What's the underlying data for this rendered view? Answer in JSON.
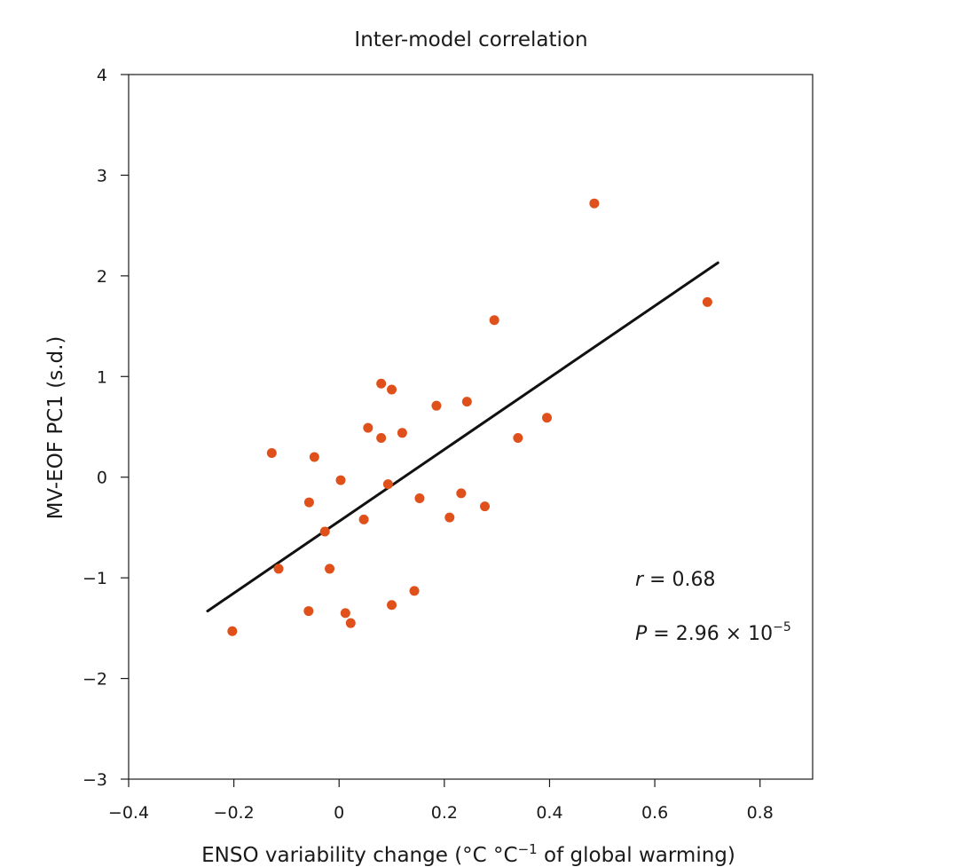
{
  "chart_data": {
    "type": "scatter",
    "title": "Inter-model correlation",
    "xlabel_parts": {
      "before_superscript": "ENSO variability change (°C °C",
      "superscript": "−1",
      "after_superscript": " of global warming)"
    },
    "ylabel": "MV-EOF PC1 (s.d.)",
    "xlim": [
      -0.4,
      0.9
    ],
    "ylim": [
      -3,
      4
    ],
    "x_ticks": [
      -0.4,
      -0.2,
      0,
      0.2,
      0.4,
      0.6,
      0.8
    ],
    "x_tick_labels": [
      "−0.4",
      "−0.2",
      "0",
      "0.2",
      "0.4",
      "0.6",
      "0.8"
    ],
    "y_ticks": [
      4,
      3,
      2,
      1,
      0,
      -1,
      -2,
      -3
    ],
    "y_tick_labels": [
      "4",
      "3",
      "2",
      "1",
      "0",
      "−1",
      "−2",
      "−3"
    ],
    "grid": false,
    "point_color": "#e0501a",
    "line_color": "#111111",
    "points": [
      {
        "x": 0.485,
        "y": 2.72
      },
      {
        "x": 0.7,
        "y": 1.74
      },
      {
        "x": 0.295,
        "y": 1.56
      },
      {
        "x": 0.08,
        "y": 0.93
      },
      {
        "x": 0.1,
        "y": 0.87
      },
      {
        "x": 0.243,
        "y": 0.75
      },
      {
        "x": 0.185,
        "y": 0.71
      },
      {
        "x": 0.395,
        "y": 0.59
      },
      {
        "x": 0.055,
        "y": 0.49
      },
      {
        "x": 0.12,
        "y": 0.44
      },
      {
        "x": 0.08,
        "y": 0.39
      },
      {
        "x": 0.34,
        "y": 0.39
      },
      {
        "x": -0.128,
        "y": 0.24
      },
      {
        "x": -0.047,
        "y": 0.2
      },
      {
        "x": 0.003,
        "y": -0.03
      },
      {
        "x": 0.093,
        "y": -0.07
      },
      {
        "x": 0.232,
        "y": -0.16
      },
      {
        "x": 0.153,
        "y": -0.21
      },
      {
        "x": -0.057,
        "y": -0.25
      },
      {
        "x": 0.277,
        "y": -0.29
      },
      {
        "x": 0.21,
        "y": -0.4
      },
      {
        "x": 0.047,
        "y": -0.42
      },
      {
        "x": -0.027,
        "y": -0.54
      },
      {
        "x": -0.115,
        "y": -0.91
      },
      {
        "x": -0.018,
        "y": -0.91
      },
      {
        "x": 0.143,
        "y": -1.13
      },
      {
        "x": 0.1,
        "y": -1.27
      },
      {
        "x": -0.058,
        "y": -1.33
      },
      {
        "x": 0.012,
        "y": -1.35
      },
      {
        "x": 0.022,
        "y": -1.45
      },
      {
        "x": -0.203,
        "y": -1.53
      }
    ],
    "fit_line": {
      "x": [
        -0.25,
        0.72
      ],
      "y": [
        -1.33,
        2.13
      ]
    },
    "annotations": {
      "r_symbol": "r",
      "r_value": " = 0.68",
      "p_symbol": "P",
      "p_value": " = 2.96 × 10",
      "p_exponent": "−5"
    }
  }
}
